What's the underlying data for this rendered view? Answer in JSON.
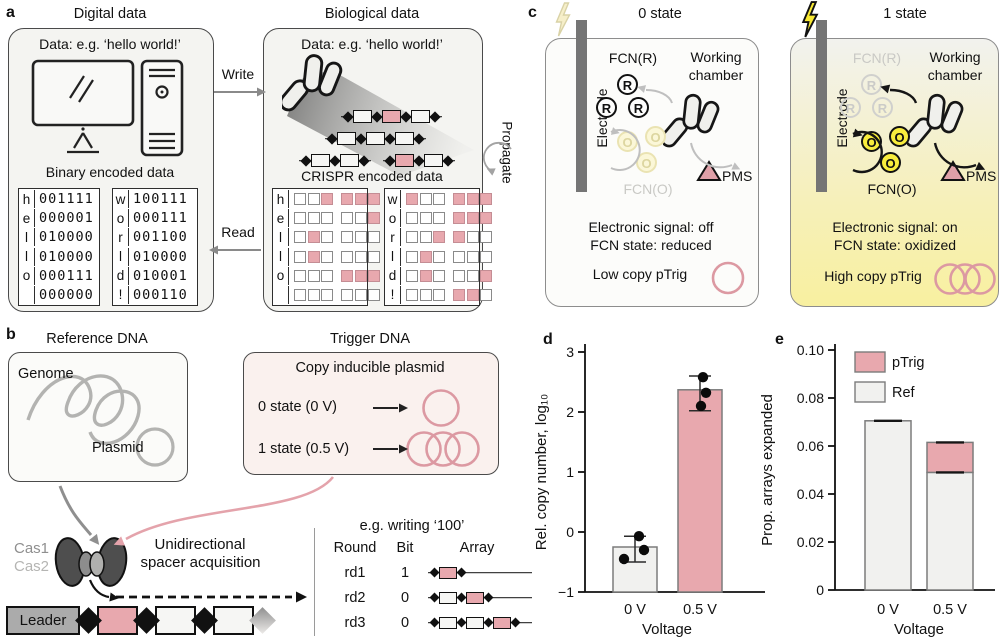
{
  "colors": {
    "pink": "#e8a8ae",
    "pink_stroke": "#dc99a2",
    "pale_pink_bg": "#faf1ee",
    "panel_gray_bg": "#f4f4f1",
    "bright_yellow": "#f8ec3d",
    "pale_yellow": "#f6efc9",
    "chamber_yellow": "#f8f0a0",
    "gray_arrow": "#8f8f8f",
    "bar_gray_fill": "#f1f1ef",
    "electrode_gray": "#757575"
  },
  "a": {
    "panel_label": "a",
    "write_label": "Write",
    "read_label": "Read",
    "propagate_label": "Propagate",
    "digital": {
      "title": "Digital data",
      "data_caption": "Data: e.g. ‘hello world!’",
      "binary_caption": "Binary encoded data",
      "tables": [
        {
          "letters": [
            "h",
            "e",
            "l",
            "l",
            "o",
            ""
          ],
          "bits": [
            "001111",
            "000001",
            "010000",
            "010000",
            "000111",
            "000000"
          ]
        },
        {
          "letters": [
            "w",
            "o",
            "r",
            "l",
            "d",
            "!"
          ],
          "bits": [
            "100111",
            "000111",
            "001100",
            "010000",
            "010001",
            "000110"
          ]
        }
      ]
    },
    "biological": {
      "title": "Biological data",
      "data_caption": "Data: e.g. ‘hello world!’",
      "crispr_caption": "CRISPR encoded data",
      "arrays": [
        [
          [
            "w",
            "p",
            "w"
          ]
        ],
        [
          [
            "w",
            "w",
            "w"
          ]
        ],
        [
          [
            "w",
            "w"
          ],
          [
            "p",
            "w"
          ]
        ]
      ],
      "tables": [
        {
          "letters": [
            "h",
            "e",
            "l",
            "l",
            "o",
            ""
          ],
          "bits": [
            "001111",
            "000001",
            "010000",
            "010000",
            "000111",
            "000000"
          ]
        },
        {
          "letters": [
            "w",
            "o",
            "r",
            "l",
            "d",
            "!"
          ],
          "bits": [
            "100111",
            "000111",
            "001100",
            "010000",
            "010001",
            "000110"
          ]
        }
      ]
    }
  },
  "b": {
    "panel_label": "b",
    "reference": {
      "title": "Reference DNA",
      "genome_label": "Genome",
      "plasmid_label": "Plasmid"
    },
    "trigger": {
      "title": "Trigger DNA",
      "caption": "Copy inducible plasmid",
      "state0": "0 state (0 V)",
      "state1": "1 state (0.5 V)"
    },
    "cas1": "Cas1",
    "cas2": "Cas2",
    "acquisition_line1": "Unidirectional",
    "acquisition_line2": "spacer acquisition",
    "leader_label": "Leader",
    "strip_boxes": [
      "p",
      "w",
      "w"
    ],
    "writing": {
      "title": "e.g. writing ‘100’",
      "headers": [
        "Round",
        "Bit",
        "Array"
      ],
      "rows": [
        {
          "round": "rd1",
          "bit": "1",
          "boxes": [
            "p"
          ]
        },
        {
          "round": "rd2",
          "bit": "0",
          "boxes": [
            "w",
            "p"
          ]
        },
        {
          "round": "rd3",
          "bit": "0",
          "boxes": [
            "w",
            "w",
            "p"
          ]
        }
      ]
    }
  },
  "c": {
    "panel_label": "c",
    "chambers": [
      {
        "state_title": "0 state",
        "electrode_label": "Electrode",
        "fcn_r_label": "FCN(R)",
        "fcn_o_label": "FCN(O)",
        "working_line1": "Working",
        "working_line2": "chamber",
        "pms_label": "PMS",
        "r_letter": "R",
        "o_letter": "O",
        "signal_line": "Electronic signal: off",
        "fcn_state_line": "FCN state: reduced",
        "copy_line": "Low copy pTrig",
        "plasmid_count": 1
      },
      {
        "state_title": "1 state",
        "electrode_label": "Electrode",
        "fcn_r_label": "FCN(R)",
        "fcn_o_label": "FCN(O)",
        "working_line1": "Working",
        "working_line2": "chamber",
        "pms_label": "PMS",
        "r_letter": "R",
        "o_letter": "O",
        "signal_line": "Electronic signal: on",
        "fcn_state_line": "FCN state: oxidized",
        "copy_line": "High copy pTrig",
        "plasmid_count": 3
      }
    ]
  },
  "chart_data": [
    {
      "id": "d",
      "panel_label": "d",
      "type": "bar",
      "categories": [
        "0 V",
        "0.5 V"
      ],
      "values": [
        -0.25,
        2.37
      ],
      "points": [
        [
          -0.07,
          -0.3,
          -0.45
        ],
        [
          2.58,
          2.32,
          2.1
        ]
      ],
      "error_low": [
        -0.5,
        2.02
      ],
      "error_high": [
        -0.07,
        2.6
      ],
      "bar_colors": [
        "#f1f1ef",
        "#e8a8ae"
      ],
      "xlabel": "Voltage",
      "ylabel": "Rel. copy number, log₁₀",
      "ylim": [
        -1,
        3
      ],
      "yticks": [
        -1,
        0,
        1,
        2,
        3
      ],
      "ytick_labels": [
        "−1",
        "0",
        "1",
        "2",
        "3"
      ],
      "grid": false,
      "legend_position": "none"
    },
    {
      "id": "e",
      "panel_label": "e",
      "type": "stacked-bar",
      "categories": [
        "0 V",
        "0.5 V"
      ],
      "series": [
        {
          "name": "Ref",
          "color": "#f1f1ef",
          "values": [
            0.0705,
            0.049
          ]
        },
        {
          "name": "pTrig",
          "color": "#e8a8ae",
          "values": [
            0.0,
            0.0125
          ]
        }
      ],
      "legend_order": [
        "pTrig",
        "Ref"
      ],
      "legend_position": "top-left",
      "error_marks": [
        [
          0.0705
        ],
        [
          0.049,
          0.0615
        ]
      ],
      "xlabel": "Voltage",
      "ylabel": "Prop. arrays expanded",
      "ylim": [
        0,
        0.1
      ],
      "yticks": [
        0,
        0.02,
        0.04,
        0.06,
        0.08,
        0.1
      ],
      "ytick_labels": [
        "0",
        "0.02",
        "0.04",
        "0.06",
        "0.08",
        "0.10"
      ],
      "grid": false
    }
  ]
}
